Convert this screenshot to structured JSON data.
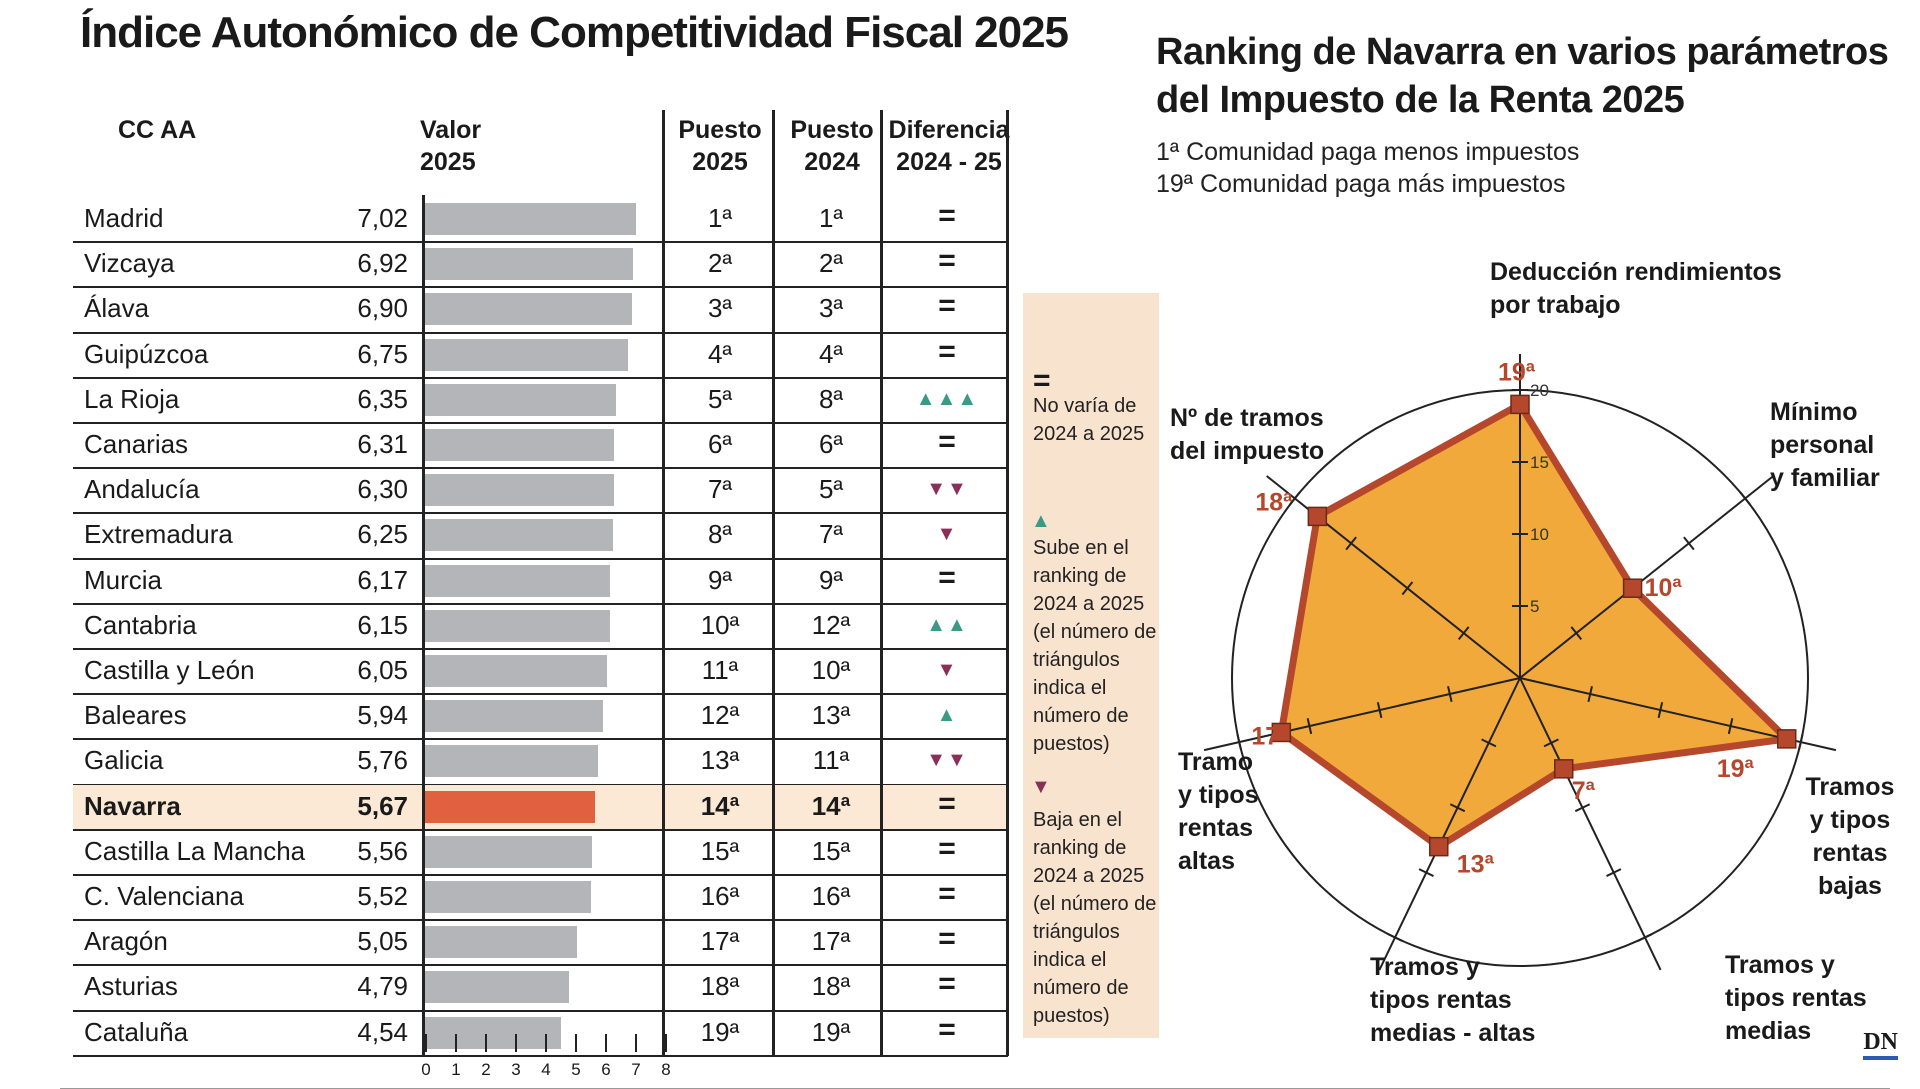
{
  "left_title": "Índice Autonómico de Competitividad Fiscal  2025",
  "right_title": "Ranking de Navarra en varios parámetros del Impuesto de la Renta 2025",
  "right_notes": [
    "1ª Comunidad paga menos impuestos",
    "19ª Comunidad paga más impuestos"
  ],
  "headers": {
    "ccaa": "CC AA",
    "valor": "Valor 2025",
    "puesto2025": "Puesto 2025",
    "puesto2024": "Puesto 2024",
    "diferencia": "Diferencia 2024 - 25"
  },
  "chart_data": [
    {
      "type": "table",
      "columns": [
        "CC AA",
        "Valor 2025",
        "Puesto 2025",
        "Puesto 2024",
        "Diferencia 2024 - 25"
      ],
      "xlim": [
        0,
        8
      ],
      "x_ticks": [
        "0",
        "1",
        "2",
        "3",
        "4",
        "5",
        "6",
        "7",
        "8"
      ],
      "highlight": "Navarra",
      "rows": [
        {
          "name": "Madrid",
          "value": "7,02",
          "num": 7.02,
          "p2025": "1ª",
          "p2024": "1ª",
          "change": 0
        },
        {
          "name": "Vizcaya",
          "value": "6,92",
          "num": 6.92,
          "p2025": "2ª",
          "p2024": "2ª",
          "change": 0
        },
        {
          "name": "Álava",
          "value": "6,90",
          "num": 6.9,
          "p2025": "3ª",
          "p2024": "3ª",
          "change": 0
        },
        {
          "name": "Guipúzcoa",
          "value": "6,75",
          "num": 6.75,
          "p2025": "4ª",
          "p2024": "4ª",
          "change": 0
        },
        {
          "name": "La Rioja",
          "value": "6,35",
          "num": 6.35,
          "p2025": "5ª",
          "p2024": "8ª",
          "change": 3
        },
        {
          "name": "Canarias",
          "value": "6,31",
          "num": 6.31,
          "p2025": "6ª",
          "p2024": "6ª",
          "change": 0
        },
        {
          "name": "Andalucía",
          "value": "6,30",
          "num": 6.3,
          "p2025": "7ª",
          "p2024": "5ª",
          "change": -2
        },
        {
          "name": "Extremadura",
          "value": "6,25",
          "num": 6.25,
          "p2025": "8ª",
          "p2024": "7ª",
          "change": -1
        },
        {
          "name": "Murcia",
          "value": "6,17",
          "num": 6.17,
          "p2025": "9ª",
          "p2024": "9ª",
          "change": 0
        },
        {
          "name": "Cantabria",
          "value": "6,15",
          "num": 6.15,
          "p2025": "10ª",
          "p2024": "12ª",
          "change": 2
        },
        {
          "name": "Castilla y León",
          "value": "6,05",
          "num": 6.05,
          "p2025": "11ª",
          "p2024": "10ª",
          "change": -1
        },
        {
          "name": "Baleares",
          "value": "5,94",
          "num": 5.94,
          "p2025": "12ª",
          "p2024": "13ª",
          "change": 1
        },
        {
          "name": "Galicia",
          "value": "5,76",
          "num": 5.76,
          "p2025": "13ª",
          "p2024": "11ª",
          "change": -2
        },
        {
          "name": "Navarra",
          "value": "5,67",
          "num": 5.67,
          "p2025": "14ª",
          "p2024": "14ª",
          "change": 0
        },
        {
          "name": "Castilla La Mancha",
          "value": "5,56",
          "num": 5.56,
          "p2025": "15ª",
          "p2024": "15ª",
          "change": 0
        },
        {
          "name": "C. Valenciana",
          "value": "5,52",
          "num": 5.52,
          "p2025": "16ª",
          "p2024": "16ª",
          "change": 0
        },
        {
          "name": "Aragón",
          "value": "5,05",
          "num": 5.05,
          "p2025": "17ª",
          "p2024": "17ª",
          "change": 0
        },
        {
          "name": "Asturias",
          "value": "4,79",
          "num": 4.79,
          "p2025": "18ª",
          "p2024": "18ª",
          "change": 0
        },
        {
          "name": "Cataluña",
          "value": "4,54",
          "num": 4.54,
          "p2025": "19ª",
          "p2024": "19ª",
          "change": 0
        }
      ]
    },
    {
      "type": "radar",
      "max": 20,
      "scale_ticks": [
        "5",
        "10",
        "15",
        "20"
      ],
      "axes": [
        {
          "label": "Deducción rendimientos por trabajo",
          "value": 19,
          "value_label": "19ª"
        },
        {
          "label": "Mínimo personal y familiar",
          "value": 10,
          "value_label": "10ª"
        },
        {
          "label": "Tramos y tipos rentas bajas",
          "value": 19,
          "value_label": "19ª"
        },
        {
          "label": "Tramos y tipos rentas medias",
          "value": 7,
          "value_label": "7ª"
        },
        {
          "label": "Tramos y tipos rentas medias - altas",
          "value": 13,
          "value_label": "13ª"
        },
        {
          "label": "Tramo y tipos rentas altas",
          "value": 17,
          "value_label": "17ª"
        },
        {
          "label": "Nº de tramos del impuesto",
          "value": 18,
          "value_label": "18ª"
        }
      ],
      "fill_color": "#f2a93b",
      "stroke_color": "#b5472c"
    }
  ],
  "legend": {
    "equal_symbol": "=",
    "equal_text": "No varía de 2024 a 2025",
    "up_text": "Sube en el ranking de 2024 a 2025 (el número de triángulos indica el número de puestos)",
    "down_text": "Baja en el ranking de 2024 a 2025 (el número de triángulos indica el número de puestos)"
  },
  "colors": {
    "up": "#3a9a86",
    "down": "#8a2f57",
    "bar": "#b3b5b8",
    "highlight_bar": "#e06040",
    "highlight_row": "#fbe9d6"
  },
  "brand": "DN"
}
